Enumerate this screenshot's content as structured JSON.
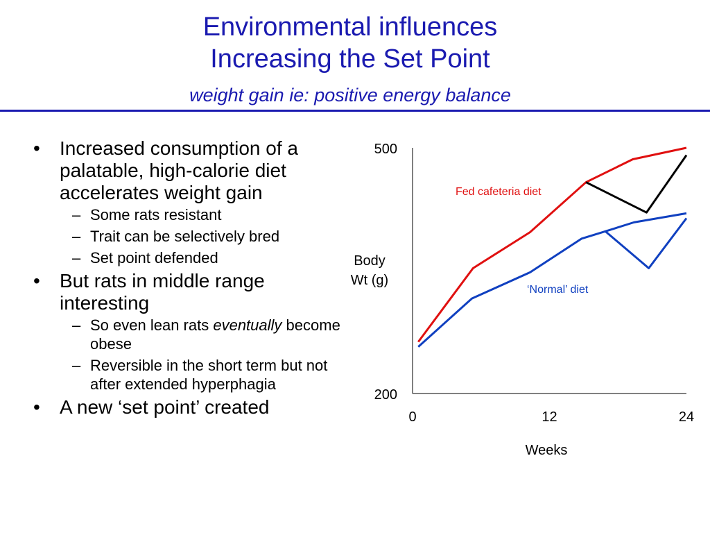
{
  "header": {
    "title": "Environmental influences",
    "title2": "Increasing the Set Point",
    "subtitle": "weight gain ie: positive energy balance"
  },
  "bullets": [
    {
      "text": "Increased consumption of a palatable, high-calorie diet accelerates weight gain",
      "sub": [
        {
          "parts": [
            "Some rats resistant"
          ]
        },
        {
          "parts": [
            "Trait can be selectively bred"
          ]
        },
        {
          "parts": [
            "Set point defended"
          ]
        }
      ]
    },
    {
      "text": "But rats in middle range interesting",
      "sub": [
        {
          "parts": [
            "So even lean rats ",
            "eventually",
            " become obese"
          ]
        },
        {
          "parts": [
            "Reversible in the short term but not after extended hyperphagia"
          ]
        }
      ]
    },
    {
      "text": "A new ‘set point’ created",
      "sub": []
    }
  ],
  "chart_data": {
    "type": "line",
    "ylabel": "Body Wt (g)",
    "xlabel": "Weeks",
    "xlim": [
      0,
      24
    ],
    "ylim": [
      200,
      500
    ],
    "xticks": [
      0,
      12,
      24
    ],
    "yticks": [
      200,
      500
    ],
    "annotations": [
      "Fed cafeteria diet",
      "‘Normal’ diet"
    ],
    "series": [
      {
        "color": "#e01010",
        "x": [
          0.5,
          5.3,
          10.3,
          15.2,
          19.3,
          24
        ],
        "values": [
          263,
          353,
          397,
          458,
          486,
          500
        ]
      },
      {
        "color": "#000000",
        "x": [
          15.2,
          20.5,
          24
        ],
        "values": [
          458,
          421,
          491
        ]
      },
      {
        "color": "#1040c0",
        "x": [
          0.5,
          5.2,
          10.3,
          14.8,
          16.9,
          19.4,
          24
        ],
        "values": [
          257,
          316,
          348,
          389,
          398,
          409,
          420
        ]
      },
      {
        "color": "#1040c0",
        "x": [
          16.9,
          20.7,
          24
        ],
        "values": [
          398,
          353,
          414
        ]
      }
    ]
  }
}
